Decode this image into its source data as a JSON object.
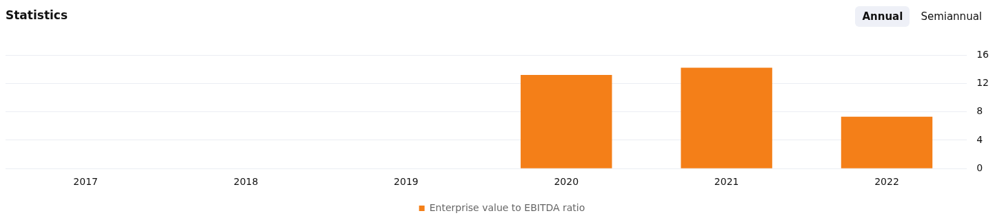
{
  "chart_data": {
    "type": "bar",
    "title": "Statistics",
    "annotations": [
      "Annual",
      "Semiannual"
    ],
    "categories": [
      "2017",
      "2018",
      "2019",
      "2020",
      "2021",
      "2022"
    ],
    "series": [
      {
        "name": "Enterprise value to EBITDA ratio",
        "color": "#f47f18",
        "values": [
          null,
          null,
          null,
          13.2,
          14.2,
          7.3
        ]
      }
    ],
    "ylim": [
      0,
      16
    ],
    "yticks": [
      0,
      4,
      8,
      12,
      16
    ],
    "grid": "y",
    "legend": "bottom"
  }
}
